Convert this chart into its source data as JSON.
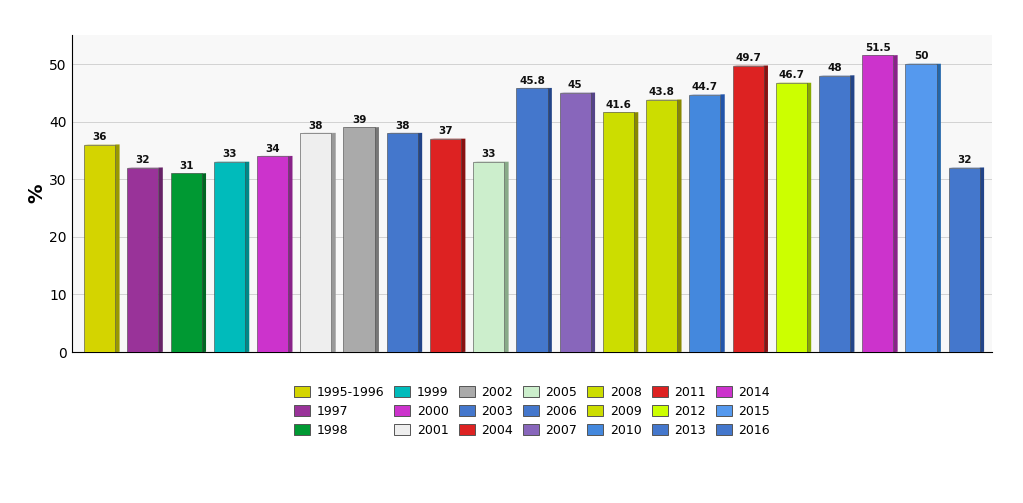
{
  "years": [
    "1995-1996",
    "1997",
    "1998",
    "1999",
    "2000",
    "2001",
    "2002",
    "2003",
    "2004",
    "2005",
    "2006",
    "2007",
    "2008",
    "2009",
    "2010",
    "2011",
    "2012",
    "2013",
    "2014",
    "2015",
    "2016"
  ],
  "values": [
    36,
    32,
    31,
    33,
    34,
    38,
    39,
    38,
    37,
    33,
    45.8,
    45,
    41.6,
    43.8,
    44.7,
    49.7,
    46.7,
    48,
    51.5,
    50,
    32
  ],
  "value_labels": [
    "36",
    "32",
    "31",
    "33",
    "34",
    "38",
    "39",
    "38",
    "37",
    "33",
    "45.8",
    "45",
    "41.6",
    "43.8",
    "44.7",
    "49.7",
    "46.7",
    "48",
    "51.5",
    "50",
    "32"
  ],
  "bar_colors": [
    "#d4d400",
    "#993399",
    "#009933",
    "#00bbbb",
    "#cc33cc",
    "#eeeeee",
    "#aaaaaa",
    "#4477cc",
    "#dd2222",
    "#cceecc",
    "#4477cc",
    "#8866bb",
    "#ccdd00",
    "#ccdd00",
    "#4488dd",
    "#dd2222",
    "#ccff00",
    "#4477cc",
    "#cc33cc",
    "#5599ee",
    "#4477cc"
  ],
  "bar_side_colors": [
    "#999900",
    "#662266",
    "#006622",
    "#008888",
    "#882288",
    "#999999",
    "#777777",
    "#224488",
    "#881111",
    "#88aa88",
    "#224488",
    "#554488",
    "#888800",
    "#888800",
    "#2255aa",
    "#881111",
    "#88aa00",
    "#224488",
    "#882288",
    "#2266aa",
    "#224488"
  ],
  "ylabel": "%",
  "ylim": [
    0,
    55
  ],
  "yticks": [
    0,
    10,
    20,
    30,
    40,
    50
  ],
  "legend_entries": [
    {
      "label": "1995-1996",
      "color": "#d4d400"
    },
    {
      "label": "1997",
      "color": "#993399"
    },
    {
      "label": "1998",
      "color": "#009933"
    },
    {
      "label": "1999",
      "color": "#00bbbb"
    },
    {
      "label": "2000",
      "color": "#cc33cc"
    },
    {
      "label": "2001",
      "color": "#eeeeee"
    },
    {
      "label": "2002",
      "color": "#aaaaaa"
    },
    {
      "label": "2003",
      "color": "#4477cc"
    },
    {
      "label": "2004",
      "color": "#dd2222"
    },
    {
      "label": "2005",
      "color": "#cceecc"
    },
    {
      "label": "2006",
      "color": "#4477cc"
    },
    {
      "label": "2007",
      "color": "#8866bb"
    },
    {
      "label": "2008",
      "color": "#ccdd00"
    },
    {
      "label": "2009",
      "color": "#ccdd00"
    },
    {
      "label": "2010",
      "color": "#4488dd"
    },
    {
      "label": "2011",
      "color": "#dd2222"
    },
    {
      "label": "2012",
      "color": "#ccff00"
    },
    {
      "label": "2013",
      "color": "#4477cc"
    },
    {
      "label": "2014",
      "color": "#cc33cc"
    },
    {
      "label": "2015",
      "color": "#5599ee"
    },
    {
      "label": "2016",
      "color": "#4477cc"
    }
  ],
  "background_color": "#ffffff",
  "plot_bg_color": "#f8f8f8"
}
